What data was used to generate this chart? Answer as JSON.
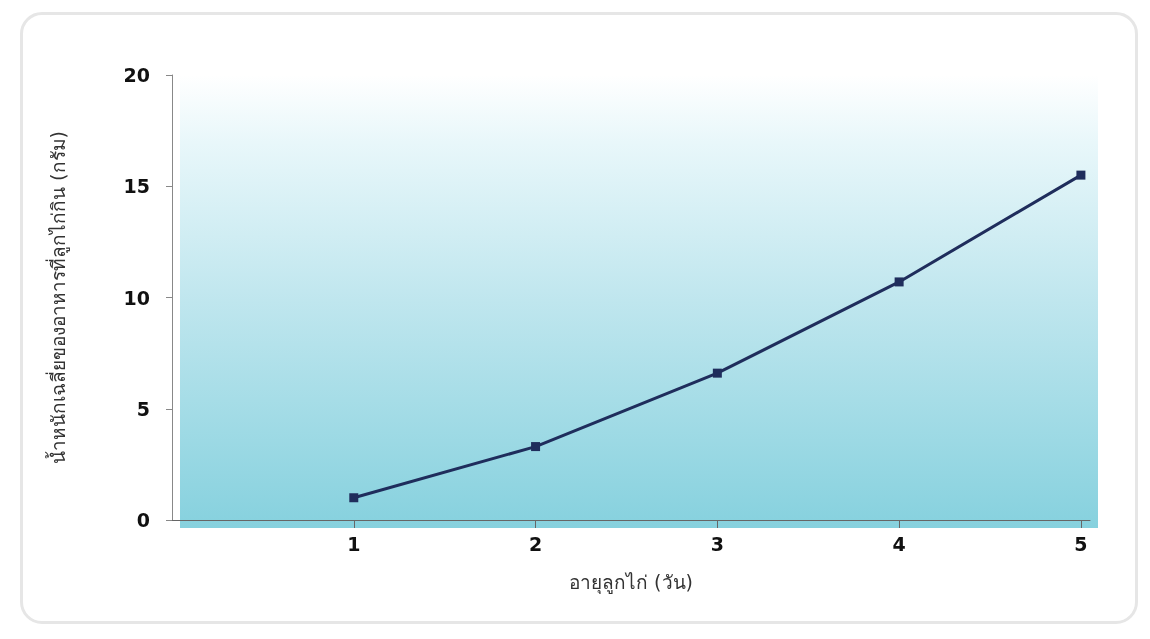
{
  "chart_data": {
    "type": "line",
    "xlabel": "อายุลูกไก่ (วัน)",
    "ylabel": "น้ำหนักเฉลี่ยของอาหารที่ลูกไก่กิน (กรัม)",
    "x": [
      1,
      2,
      3,
      4,
      5
    ],
    "series": [
      {
        "color": "#1f2d5c",
        "values": [
          1.0,
          3.3,
          6.6,
          10.7,
          15.5
        ]
      }
    ],
    "xlim": [
      0,
      5.05
    ],
    "xticks": [
      1,
      2,
      3,
      4,
      5
    ],
    "ylim": [
      0,
      20
    ],
    "yticks": [
      0,
      5,
      10,
      15,
      20
    ],
    "grid": false,
    "marker": "square",
    "line_style": "solid"
  }
}
